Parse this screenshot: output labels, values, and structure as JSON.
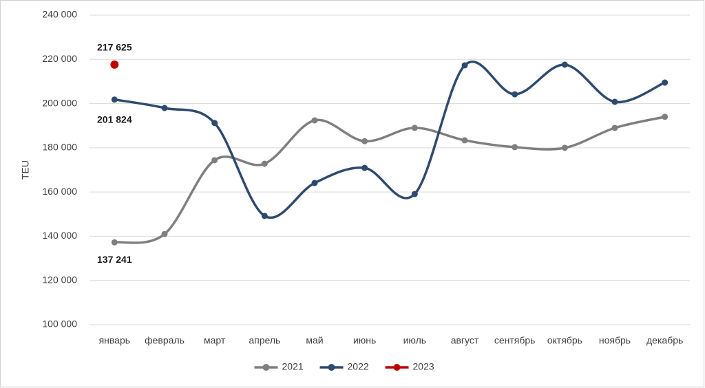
{
  "chart_data": {
    "type": "line",
    "y_label": "TEU",
    "categories": [
      "январь",
      "февраль",
      "март",
      "апрель",
      "май",
      "июнь",
      "июль",
      "август",
      "сентябрь",
      "октябрь",
      "ноябрь",
      "декабрь"
    ],
    "series": [
      {
        "name": "2021",
        "color": "#7f7f7f",
        "values": [
          137241,
          141000,
          174400,
          172800,
          192400,
          183000,
          189000,
          183400,
          180300,
          180000,
          189000,
          194000
        ],
        "value_labels": [
          "137 241",
          null,
          null,
          null,
          null,
          null,
          null,
          null,
          null,
          null,
          null,
          null
        ]
      },
      {
        "name": "2022",
        "color": "#2e4a6e",
        "values": [
          201824,
          198000,
          191200,
          149200,
          164100,
          170900,
          159100,
          217300,
          204200,
          217600,
          200800,
          209500
        ],
        "value_labels": [
          "201 824",
          null,
          null,
          null,
          null,
          null,
          null,
          null,
          null,
          null,
          null,
          null
        ]
      },
      {
        "name": "2023",
        "color": "#c00000",
        "values": [
          217625,
          null,
          null,
          null,
          null,
          null,
          null,
          null,
          null,
          null,
          null,
          null
        ],
        "value_labels": [
          "217 625",
          null,
          null,
          null,
          null,
          null,
          null,
          null,
          null,
          null,
          null,
          null
        ]
      }
    ],
    "ylim": [
      100000,
      240000
    ],
    "yticks": [
      {
        "value": 100000,
        "label": "100 000"
      },
      {
        "value": 120000,
        "label": "120 000"
      },
      {
        "value": 140000,
        "label": "140 000"
      },
      {
        "value": 160000,
        "label": "160 000"
      },
      {
        "value": 180000,
        "label": "180 000"
      },
      {
        "value": 200000,
        "label": "200 000"
      },
      {
        "value": 220000,
        "label": "220 000"
      },
      {
        "value": 240000,
        "label": "240 000"
      }
    ],
    "grid": true,
    "smooth": true,
    "legend": "bottom"
  }
}
